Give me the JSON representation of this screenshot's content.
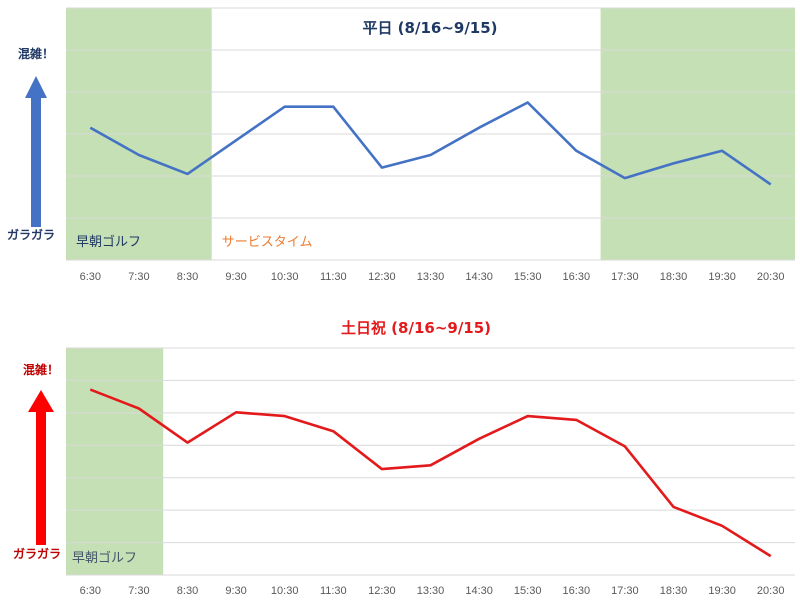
{
  "chart_data": [
    {
      "type": "line",
      "title": "平日 (8/16~9/15)",
      "categories": [
        "6:30",
        "7:30",
        "8:30",
        "9:30",
        "10:30",
        "11:30",
        "12:30",
        "13:30",
        "14:30",
        "15:30",
        "16:30",
        "17:30",
        "18:30",
        "19:30",
        "20:30"
      ],
      "series": [
        {
          "values": [
            6.3,
            5.0,
            4.1,
            5.7,
            7.3,
            7.3,
            4.4,
            5.0,
            6.3,
            7.5,
            5.2,
            3.9,
            4.6,
            5.2,
            3.6
          ]
        }
      ],
      "ylim": [
        0,
        12
      ],
      "grid": true,
      "axis_high_label": "混雑！",
      "axis_low_label": "ガラガラ",
      "bands": [
        {
          "label": "早朝ゴルフ",
          "from": "6:30",
          "to": "8:30",
          "color": "#c5e0b4",
          "label_color": "#1f3864"
        },
        {
          "label": "サービスタイム",
          "from": "8:30",
          "to": "16:30",
          "color": "#ffffff",
          "label_color": "#ed7d31"
        },
        {
          "label": "",
          "from": "16:30",
          "to": "20:30",
          "color": "#c5e0b4",
          "label_color": "#1f3864"
        }
      ],
      "line_color": "#4472c4",
      "title_color": "#1f3864",
      "arrow_color": "#4472c4",
      "side_label_color": "#1f3864"
    },
    {
      "type": "line",
      "title": "土日祝 (8/16~9/15)",
      "categories": [
        "6:30",
        "7:30",
        "8:30",
        "9:30",
        "10:30",
        "11:30",
        "12:30",
        "13:30",
        "14:30",
        "15:30",
        "16:30",
        "17:30",
        "18:30",
        "19:30",
        "20:30"
      ],
      "series": [
        {
          "values": [
            8.9,
            8.4,
            7.5,
            8.3,
            8.2,
            7.8,
            6.8,
            6.9,
            7.6,
            8.2,
            8.1,
            7.4,
            5.8,
            5.3,
            4.5
          ]
        }
      ],
      "ylim": [
        4,
        10
      ],
      "grid": true,
      "axis_high_label": "混雑！",
      "axis_low_label": "ガラガラ",
      "bands": [
        {
          "label": "早朝ゴルフ",
          "from": "6:30",
          "to": "7:30",
          "color": "#c5e0b4",
          "label_color": "#44546a"
        }
      ],
      "line_color": "#e31a1c",
      "title_color": "#e31a1c",
      "arrow_color": "#ff0000",
      "side_label_color": "#c00000"
    }
  ]
}
